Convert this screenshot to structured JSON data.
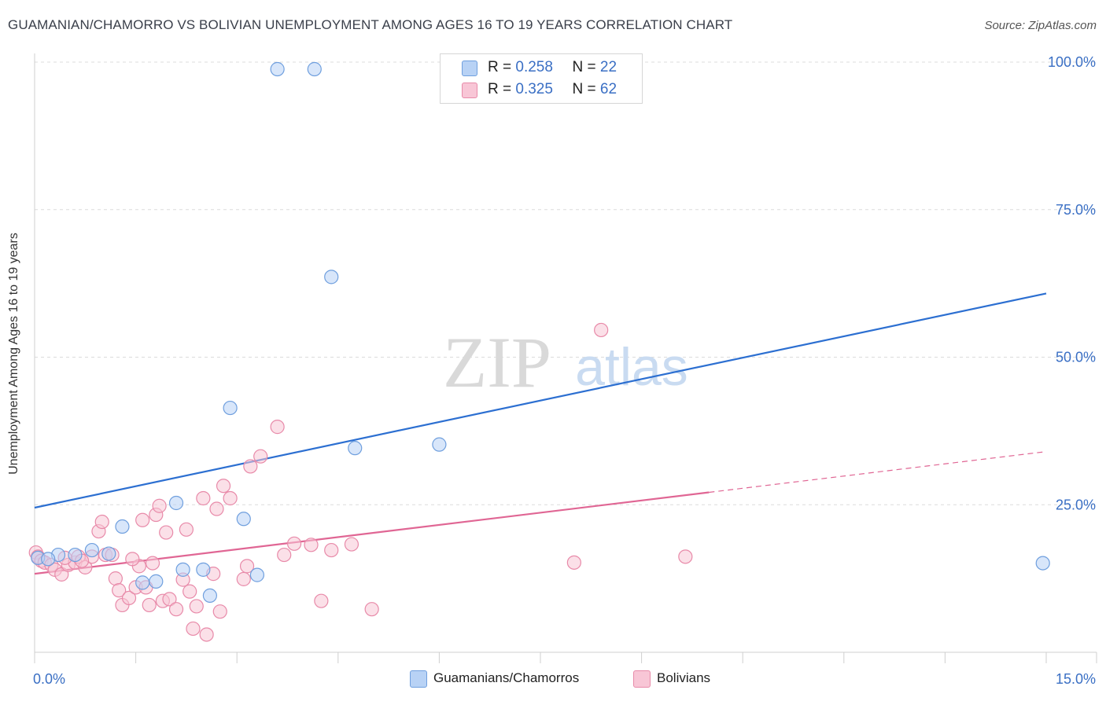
{
  "header": {
    "title": "GUAMANIAN/CHAMORRO VS BOLIVIAN UNEMPLOYMENT AMONG AGES 16 TO 19 YEARS CORRELATION CHART",
    "source": "Source: ZipAtlas.com"
  },
  "watermark": {
    "zip": "ZIP",
    "atlas": "atlas"
  },
  "legend_top": {
    "rows": [
      {
        "r_label": "R =",
        "r_value": "0.258",
        "n_label": "N =",
        "n_value": "22"
      },
      {
        "r_label": "R =",
        "r_value": "0.325",
        "n_label": "N =",
        "n_value": "62"
      }
    ]
  },
  "legend_bottom": {
    "series1": "Guamanians/Chamorros",
    "series2": "Bolivians"
  },
  "colors": {
    "blue_fill": "#b8d2f5",
    "blue_stroke": "#6f9fde",
    "blue_line": "#2c6fd1",
    "pink_fill": "#f8c6d6",
    "pink_stroke": "#e88aa9",
    "pink_line": "#e06694",
    "tick_text": "#3a6fc4",
    "grid": "#dcdcdc"
  },
  "chart_data": {
    "type": "scatter",
    "title": "GUAMANIAN/CHAMORRO VS BOLIVIAN UNEMPLOYMENT AMONG AGES 16 TO 19 YEARS CORRELATION CHART",
    "xlabel": "",
    "ylabel": "Unemployment Among Ages 16 to 19 years",
    "xlim": [
      0,
      15
    ],
    "ylim": [
      0,
      100
    ],
    "x_tick_labels": [
      "0.0%",
      "15.0%"
    ],
    "y_ticks": [
      25,
      50,
      75,
      100
    ],
    "y_tick_labels": [
      "25.0%",
      "50.0%",
      "75.0%",
      "100.0%"
    ],
    "grid": true,
    "series": [
      {
        "name": "Guamanians/Chamorros",
        "color": "blue",
        "R": 0.258,
        "N": 22,
        "trend": {
          "x": [
            0,
            15
          ],
          "y": [
            24.5,
            60.8
          ],
          "dashed_from_x": null
        },
        "points": [
          [
            0.05,
            16.0
          ],
          [
            0.35,
            16.5
          ],
          [
            0.6,
            16.5
          ],
          [
            0.85,
            17.3
          ],
          [
            1.1,
            16.7
          ],
          [
            1.3,
            21.3
          ],
          [
            1.6,
            11.8
          ],
          [
            1.8,
            12.0
          ],
          [
            2.1,
            25.3
          ],
          [
            2.2,
            14.0
          ],
          [
            2.5,
            14.0
          ],
          [
            2.6,
            9.6
          ],
          [
            2.9,
            41.4
          ],
          [
            3.1,
            22.6
          ],
          [
            3.3,
            13.1
          ],
          [
            3.6,
            98.8
          ],
          [
            4.15,
            98.8
          ],
          [
            4.4,
            63.6
          ],
          [
            4.75,
            34.6
          ],
          [
            6.0,
            35.2
          ],
          [
            14.95,
            15.1
          ],
          [
            0.2,
            15.8
          ]
        ]
      },
      {
        "name": "Bolivians",
        "color": "pink",
        "R": 0.325,
        "N": 62,
        "trend": {
          "x": [
            0,
            15
          ],
          "y": [
            13.3,
            34.0
          ],
          "dashed_from_x": 10.0
        },
        "points": [
          [
            0.02,
            16.9
          ],
          [
            0.05,
            16.2
          ],
          [
            0.1,
            15.5
          ],
          [
            0.15,
            15.2
          ],
          [
            0.25,
            14.8
          ],
          [
            0.3,
            14.0
          ],
          [
            0.4,
            13.2
          ],
          [
            0.5,
            14.8
          ],
          [
            0.6,
            15.2
          ],
          [
            0.65,
            16.2
          ],
          [
            0.75,
            14.4
          ],
          [
            0.85,
            16.2
          ],
          [
            0.95,
            20.5
          ],
          [
            1.0,
            22.1
          ],
          [
            1.05,
            16.5
          ],
          [
            1.15,
            16.5
          ],
          [
            1.2,
            12.5
          ],
          [
            1.25,
            10.5
          ],
          [
            1.3,
            8.0
          ],
          [
            1.4,
            9.2
          ],
          [
            1.5,
            11.0
          ],
          [
            1.55,
            14.6
          ],
          [
            1.6,
            22.4
          ],
          [
            1.65,
            11.0
          ],
          [
            1.7,
            8.0
          ],
          [
            1.75,
            15.1
          ],
          [
            1.8,
            23.3
          ],
          [
            1.85,
            24.8
          ],
          [
            1.9,
            8.7
          ],
          [
            1.95,
            20.3
          ],
          [
            2.0,
            9.0
          ],
          [
            2.1,
            7.3
          ],
          [
            2.2,
            12.3
          ],
          [
            2.25,
            20.8
          ],
          [
            2.3,
            10.3
          ],
          [
            2.35,
            4.0
          ],
          [
            2.4,
            7.8
          ],
          [
            2.5,
            26.1
          ],
          [
            2.55,
            3.0
          ],
          [
            2.65,
            13.3
          ],
          [
            2.7,
            24.3
          ],
          [
            2.75,
            6.9
          ],
          [
            2.8,
            28.2
          ],
          [
            2.9,
            26.1
          ],
          [
            3.1,
            12.4
          ],
          [
            3.15,
            14.6
          ],
          [
            3.2,
            31.5
          ],
          [
            3.35,
            33.2
          ],
          [
            3.6,
            38.2
          ],
          [
            3.7,
            16.5
          ],
          [
            3.85,
            18.4
          ],
          [
            4.1,
            18.2
          ],
          [
            4.25,
            8.7
          ],
          [
            4.4,
            17.3
          ],
          [
            4.7,
            18.3
          ],
          [
            5.0,
            7.3
          ],
          [
            8.0,
            15.2
          ],
          [
            8.4,
            54.6
          ],
          [
            9.65,
            16.2
          ],
          [
            0.45,
            16.0
          ],
          [
            0.7,
            15.5
          ],
          [
            1.45,
            15.8
          ]
        ]
      }
    ]
  }
}
